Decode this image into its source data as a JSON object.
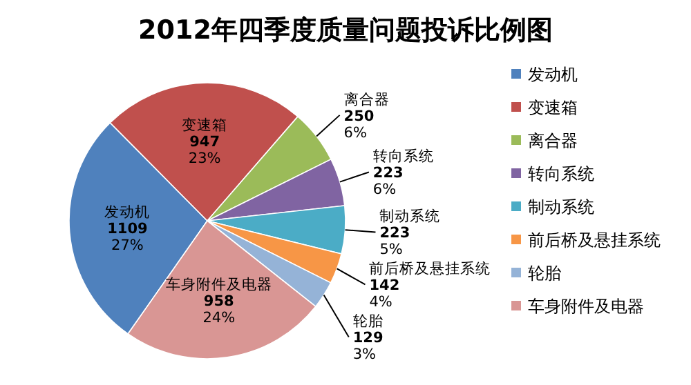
{
  "chart_data": {
    "type": "pie",
    "title": "2012年四季度质量问题投诉比例图",
    "categories": [
      "发动机",
      "变速箱",
      "离合器",
      "转向系统",
      "制动系统",
      "前后桥及悬挂系统",
      "轮胎",
      "车身附件及电器"
    ],
    "values": [
      1109,
      947,
      250,
      223,
      223,
      142,
      129,
      958
    ],
    "value_labels": [
      "1109 27%",
      "947 23%",
      "250 6%",
      "223 6%",
      "223 5%",
      "142 4%",
      "129 3%",
      "958 24%"
    ],
    "colors": [
      "#4f81bd",
      "#c0504d",
      "#9bbb59",
      "#8064a2",
      "#4bacc6",
      "#f79646",
      "#95b3d7",
      "#d99694"
    ],
    "legend": "right"
  }
}
